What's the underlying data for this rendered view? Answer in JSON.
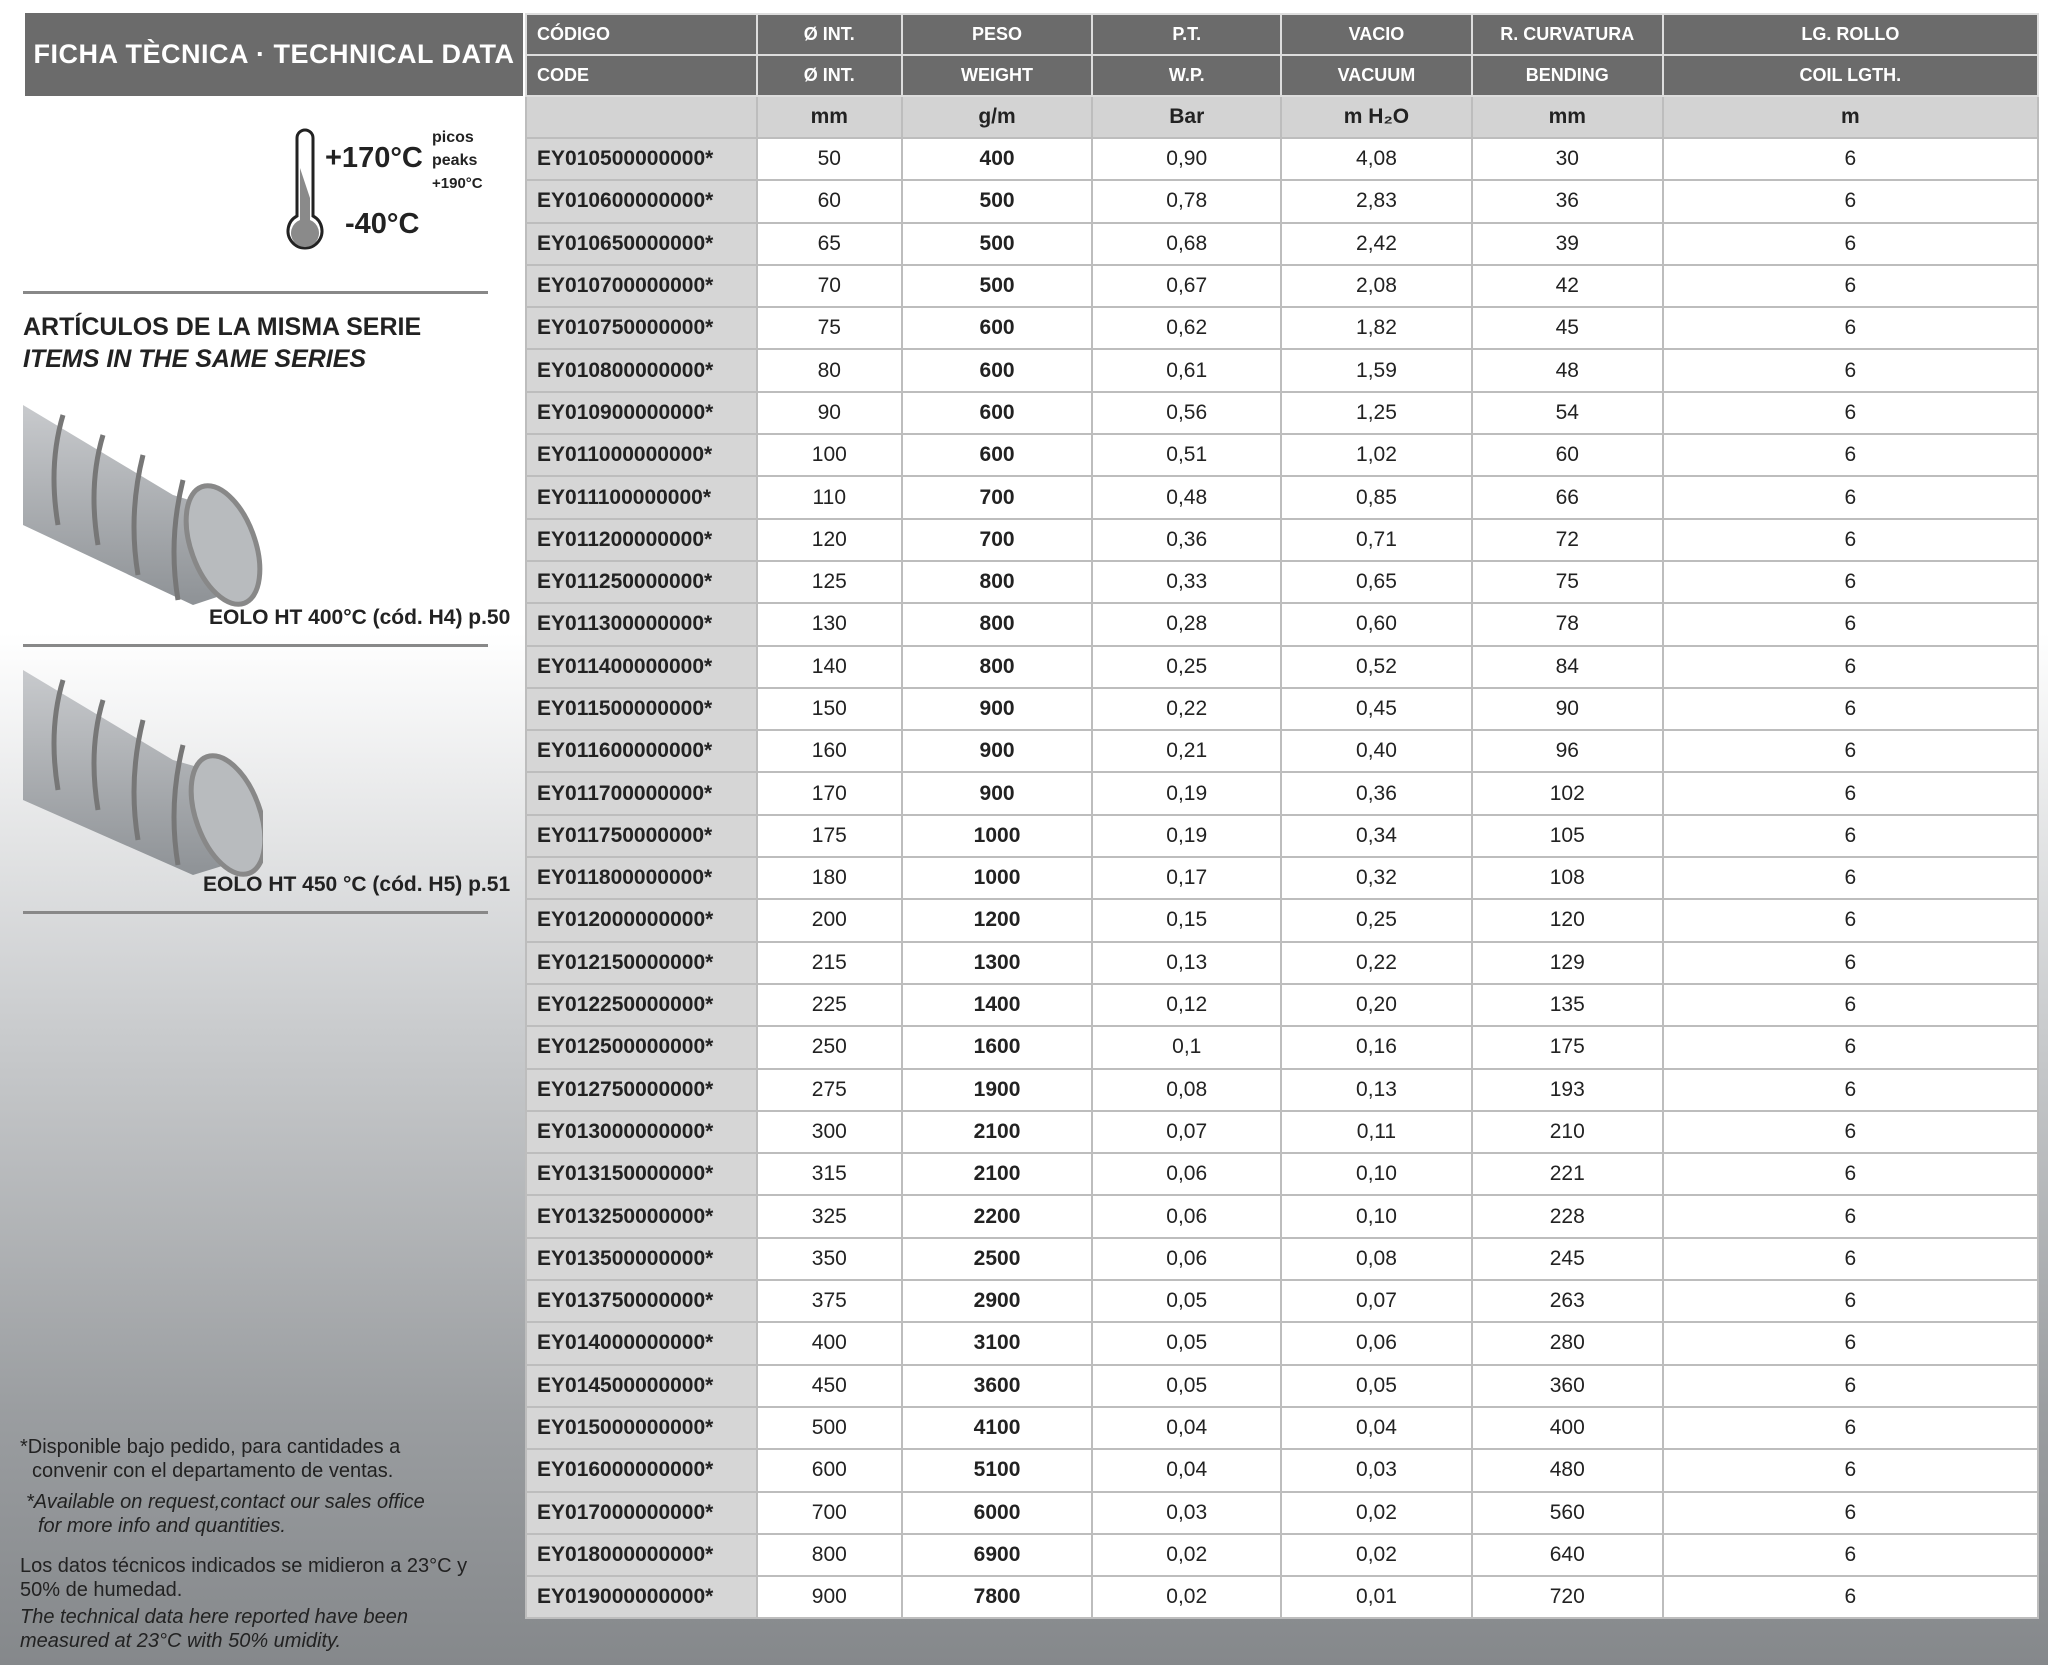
{
  "title": "FICHA TÈCNICA · TECHNICAL DATA",
  "temperature": {
    "max": "+170°C",
    "min": "-40°C",
    "peak_es": "picos",
    "peak_en": "peaks",
    "peak_value": "+190°C"
  },
  "series": {
    "title_es": "ARTÍCULOS DE LA MISMA SERIE",
    "title_en": "ITEMS IN THE SAME SERIES",
    "items": [
      {
        "label": "EOLO HT 400°C (cód. H4) p.50"
      },
      {
        "label": "EOLO HT 450 °C (cód. H5) p.51"
      }
    ]
  },
  "notes": {
    "avail_es_1": "*Disponible bajo pedido, para cantidades a",
    "avail_es_2": "convenir con el departamento de ventas.",
    "avail_en_1": "*Available on request,contact our sales office",
    "avail_en_2": "for more info and quantities.",
    "measure_es_1": "Los datos técnicos indicados se midieron a 23°C y",
    "measure_es_2": "50% de humedad.",
    "measure_en_1": "The technical data here reported have been",
    "measure_en_2": "measured at 23°C with 50% umidity."
  },
  "table": {
    "headers_es": [
      "CÓDIGO",
      "Ø INT.",
      "PESO",
      "P.T.",
      "VACIO",
      "R. CURVATURA",
      "LG. ROLLO"
    ],
    "headers_en": [
      "CODE",
      "Ø INT.",
      "WEIGHT",
      "W.P.",
      "VACUUM",
      "BENDING",
      "COIL LGTH."
    ],
    "units": [
      "",
      "mm",
      "g/m",
      "Bar",
      "m H₂O",
      "mm",
      "m"
    ],
    "rows": [
      [
        "EY010500000000*",
        "50",
        "400",
        "0,90",
        "4,08",
        "30",
        "6"
      ],
      [
        "EY010600000000*",
        "60",
        "500",
        "0,78",
        "2,83",
        "36",
        "6"
      ],
      [
        "EY010650000000*",
        "65",
        "500",
        "0,68",
        "2,42",
        "39",
        "6"
      ],
      [
        "EY010700000000*",
        "70",
        "500",
        "0,67",
        "2,08",
        "42",
        "6"
      ],
      [
        "EY010750000000*",
        "75",
        "600",
        "0,62",
        "1,82",
        "45",
        "6"
      ],
      [
        "EY010800000000*",
        "80",
        "600",
        "0,61",
        "1,59",
        "48",
        "6"
      ],
      [
        "EY010900000000*",
        "90",
        "600",
        "0,56",
        "1,25",
        "54",
        "6"
      ],
      [
        "EY011000000000*",
        "100",
        "600",
        "0,51",
        "1,02",
        "60",
        "6"
      ],
      [
        "EY011100000000*",
        "110",
        "700",
        "0,48",
        "0,85",
        "66",
        "6"
      ],
      [
        "EY011200000000*",
        "120",
        "700",
        "0,36",
        "0,71",
        "72",
        "6"
      ],
      [
        "EY011250000000*",
        "125",
        "800",
        "0,33",
        "0,65",
        "75",
        "6"
      ],
      [
        "EY011300000000*",
        "130",
        "800",
        "0,28",
        "0,60",
        "78",
        "6"
      ],
      [
        "EY011400000000*",
        "140",
        "800",
        "0,25",
        "0,52",
        "84",
        "6"
      ],
      [
        "EY011500000000*",
        "150",
        "900",
        "0,22",
        "0,45",
        "90",
        "6"
      ],
      [
        "EY011600000000*",
        "160",
        "900",
        "0,21",
        "0,40",
        "96",
        "6"
      ],
      [
        "EY011700000000*",
        "170",
        "900",
        "0,19",
        "0,36",
        "102",
        "6"
      ],
      [
        "EY011750000000*",
        "175",
        "1000",
        "0,19",
        "0,34",
        "105",
        "6"
      ],
      [
        "EY011800000000*",
        "180",
        "1000",
        "0,17",
        "0,32",
        "108",
        "6"
      ],
      [
        "EY012000000000*",
        "200",
        "1200",
        "0,15",
        "0,25",
        "120",
        "6"
      ],
      [
        "EY012150000000*",
        "215",
        "1300",
        "0,13",
        "0,22",
        "129",
        "6"
      ],
      [
        "EY012250000000*",
        "225",
        "1400",
        "0,12",
        "0,20",
        "135",
        "6"
      ],
      [
        "EY012500000000*",
        "250",
        "1600",
        "0,1",
        "0,16",
        "175",
        "6"
      ],
      [
        "EY012750000000*",
        "275",
        "1900",
        "0,08",
        "0,13",
        "193",
        "6"
      ],
      [
        "EY013000000000*",
        "300",
        "2100",
        "0,07",
        "0,11",
        "210",
        "6"
      ],
      [
        "EY013150000000*",
        "315",
        "2100",
        "0,06",
        "0,10",
        "221",
        "6"
      ],
      [
        "EY013250000000*",
        "325",
        "2200",
        "0,06",
        "0,10",
        "228",
        "6"
      ],
      [
        "EY013500000000*",
        "350",
        "2500",
        "0,06",
        "0,08",
        "245",
        "6"
      ],
      [
        "EY013750000000*",
        "375",
        "2900",
        "0,05",
        "0,07",
        "263",
        "6"
      ],
      [
        "EY014000000000*",
        "400",
        "3100",
        "0,05",
        "0,06",
        "280",
        "6"
      ],
      [
        "EY014500000000*",
        "450",
        "3600",
        "0,05",
        "0,05",
        "360",
        "6"
      ],
      [
        "EY015000000000*",
        "500",
        "4100",
        "0,04",
        "0,04",
        "400",
        "6"
      ],
      [
        "EY016000000000*",
        "600",
        "5100",
        "0,04",
        "0,03",
        "480",
        "6"
      ],
      [
        "EY017000000000*",
        "700",
        "6000",
        "0,03",
        "0,02",
        "560",
        "6"
      ],
      [
        "EY018000000000*",
        "800",
        "6900",
        "0,02",
        "0,02",
        "640",
        "6"
      ],
      [
        "EY019000000000*",
        "900",
        "7800",
        "0,02",
        "0,01",
        "720",
        "6"
      ]
    ]
  }
}
